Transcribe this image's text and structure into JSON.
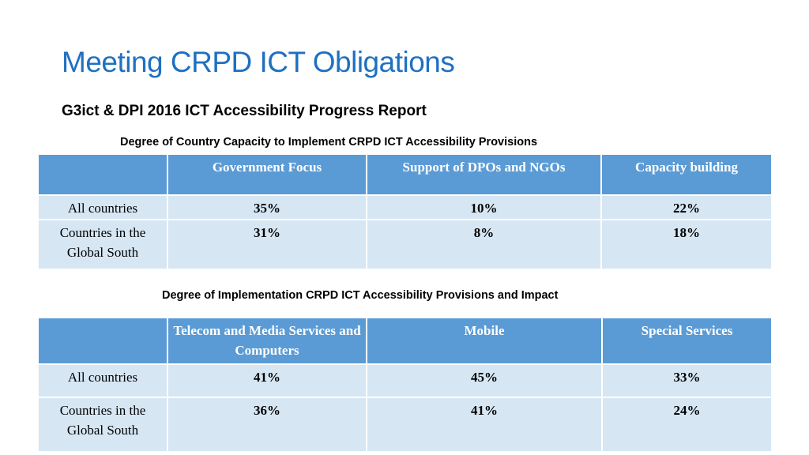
{
  "slide": {
    "title": "Meeting CRPD ICT Obligations",
    "subtitle": "G3ict & DPI 2016 ICT Accessibility Progress Report"
  },
  "table1": {
    "caption": "Degree of Country Capacity to Implement CRPD ICT Accessibility Provisions",
    "headers": [
      "",
      "Government Focus",
      "Support of DPOs and NGOs",
      "Capacity building"
    ],
    "rows": [
      {
        "label": "All countries",
        "values": [
          "35%",
          "10%",
          "22%"
        ]
      },
      {
        "label": "Countries in the Global South",
        "values": [
          "31%",
          "8%",
          "18%"
        ]
      }
    ]
  },
  "table2": {
    "caption": "Degree of Implementation CRPD ICT Accessibility Provisions and Impact",
    "headers": [
      "",
      "Telecom and Media Services and Computers",
      "Mobile",
      "Special Services"
    ],
    "rows": [
      {
        "label": "All countries",
        "values": [
          "41%",
          "45%",
          "33%"
        ]
      },
      {
        "label": "Countries in the Global South",
        "values": [
          "36%",
          "41%",
          "24%"
        ]
      }
    ]
  }
}
